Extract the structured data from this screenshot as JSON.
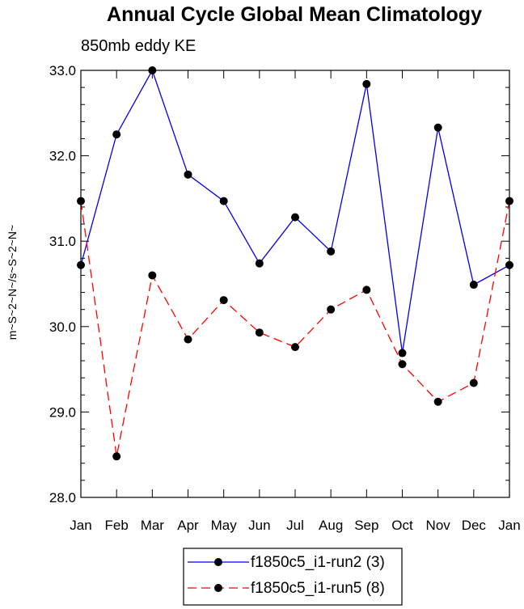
{
  "chart_data": {
    "type": "line",
    "title": "Annual Cycle Global Mean Climatology",
    "subtitle": "850mb eddy KE",
    "xlabel": "",
    "ylabel": "m~S~2~N~/s~S~2~N~",
    "categories": [
      "Jan",
      "Feb",
      "Mar",
      "Apr",
      "May",
      "Jun",
      "Jul",
      "Aug",
      "Sep",
      "Oct",
      "Nov",
      "Dec",
      "Jan"
    ],
    "ylim": [
      28.0,
      33.0
    ],
    "yticks": [
      "28.0",
      "29.0",
      "30.0",
      "31.0",
      "32.0",
      "33.0"
    ],
    "legend_position": "bottom",
    "series": [
      {
        "name": "f1850c5_i1-run2 (3)",
        "color": "#0000ee",
        "dash": "solid",
        "values": [
          30.72,
          32.25,
          33.0,
          31.78,
          31.47,
          30.74,
          31.28,
          30.88,
          32.84,
          29.69,
          32.33,
          30.49,
          30.72
        ]
      },
      {
        "name": "f1850c5_i1-run5 (8)",
        "color": "#ff0000",
        "dash": "dashed",
        "values": [
          31.47,
          28.48,
          30.6,
          29.85,
          30.31,
          29.93,
          29.76,
          30.2,
          30.43,
          29.56,
          29.12,
          29.34,
          31.47
        ]
      }
    ]
  }
}
